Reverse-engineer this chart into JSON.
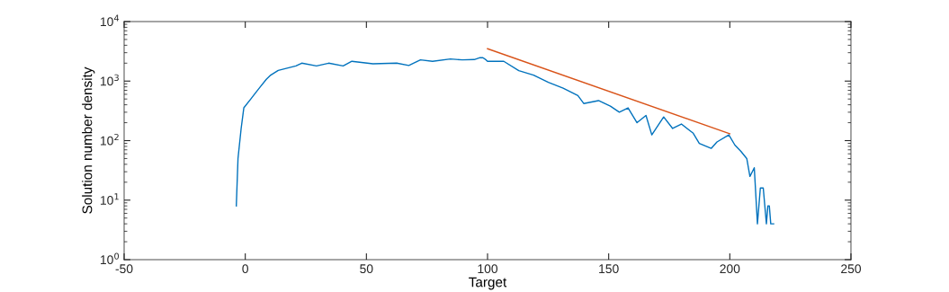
{
  "chart_data": {
    "type": "line",
    "xlabel": "Target",
    "ylabel": "Solution number density",
    "log": "y",
    "xlim": [
      -50,
      250
    ],
    "xticks": [
      -50,
      0,
      50,
      100,
      150,
      200,
      250
    ],
    "ylim": [
      1,
      10000
    ],
    "yticks": [
      {
        "value": 1,
        "label": "10$^{0}$"
      },
      {
        "value": 10,
        "label": "10$^{1}$"
      },
      {
        "value": 100,
        "label": "10$^{2}$"
      },
      {
        "value": 1000,
        "label": "10$^{3}$"
      },
      {
        "value": 10000,
        "label": "10$^{4}$"
      }
    ],
    "marker": "none",
    "line_style": "solid",
    "series": [
      {
        "color": "#0072bd",
        "x": [
          -3.7,
          -3,
          -1.7,
          -0.6,
          2.3,
          3.8,
          6.2,
          8.7,
          10.5,
          13.6,
          20.9,
          23.3,
          29.4,
          34.4,
          40.4,
          44,
          52.7,
          62.5,
          67.5,
          72.3,
          77.3,
          84.7,
          89.6,
          94.5,
          96.9,
          98.1,
          99.4,
          100,
          106.7,
          112.9,
          119,
          125.1,
          131.2,
          137.3,
          139.7,
          145.8,
          150.7,
          154.4,
          158,
          161.7,
          165.4,
          167.8,
          172.7,
          176.4,
          180,
          184.9,
          187.4,
          192.3,
          194.7,
          199.6,
          202.1,
          204.6,
          207,
          208.3,
          210.1,
          211.4,
          212.6,
          213.8,
          215.1,
          215.7,
          216.3,
          216.9,
          218.1
        ],
        "values": [
          8,
          50,
          160,
          355,
          500,
          600,
          800,
          1070,
          1260,
          1510,
          1800,
          2000,
          1800,
          2000,
          1800,
          2150,
          1950,
          2000,
          1830,
          2270,
          2150,
          2350,
          2270,
          2300,
          2480,
          2470,
          2270,
          2150,
          2150,
          1500,
          1260,
          950,
          760,
          570,
          420,
          470,
          380,
          300,
          355,
          200,
          265,
          125,
          250,
          160,
          190,
          133,
          90,
          74,
          95,
          125,
          84,
          66,
          50,
          25,
          35,
          4,
          16,
          16,
          4,
          8,
          8,
          4,
          4
        ]
      },
      {
        "color": "#d95319",
        "x": [
          100,
          200
        ],
        "values": [
          3500,
          130
        ]
      }
    ]
  }
}
